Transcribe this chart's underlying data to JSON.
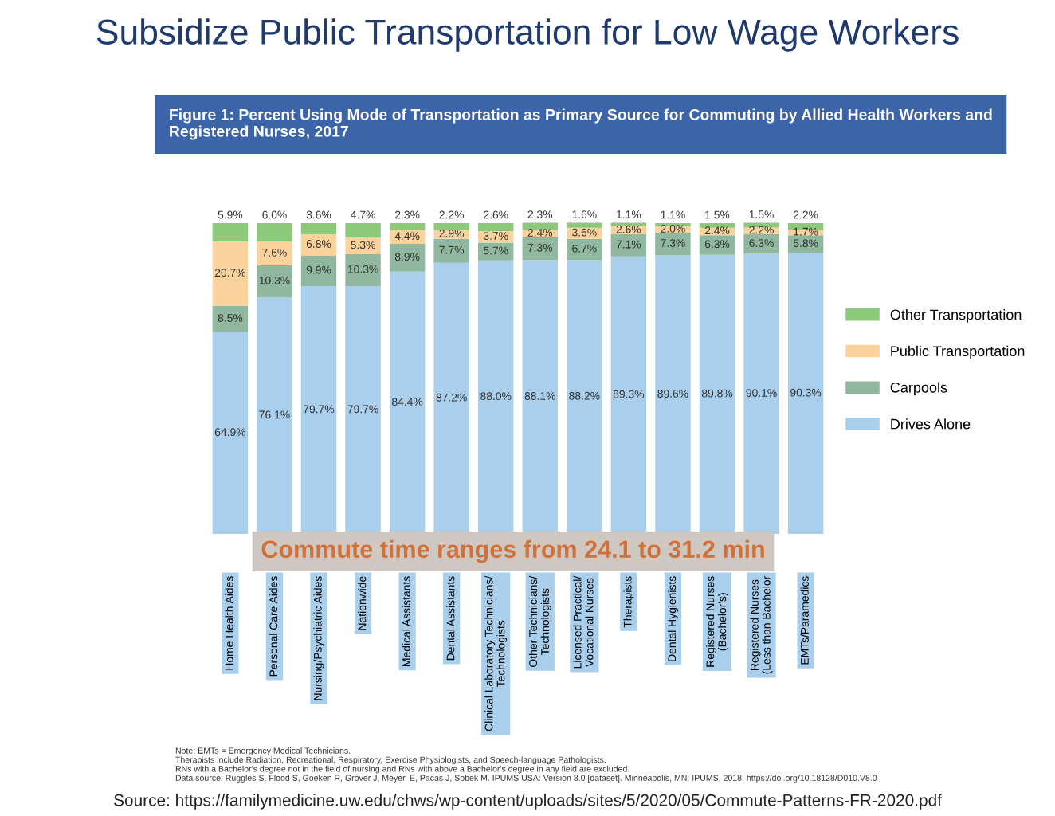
{
  "chart_data": {
    "type": "bar",
    "stacked": true,
    "title": "Subsidize Public Transportation for Low Wage Workers",
    "subtitle": "Figure 1: Percent Using Mode of Transportation as Primary Source for Commuting by Allied Health Workers and Registered Nurses, 2017",
    "categories": [
      "Home Health Aides",
      "Personal Care Aides",
      "Nursing/Psychiatric Aides",
      "Nationwide",
      "Medical Assistants",
      "Dental Assistants",
      "Clinical Laboratory Technicians/\nTechnologists",
      "Other Technicians/\nTechnologists",
      "Licensed Practical/\nVocational Nurses",
      "Therapists",
      "Dental Hygienists",
      "Registered Nurses\n(Bachelor's)",
      "Registered Nurses\n(Less than Bachelor",
      "EMTs/Paramedics"
    ],
    "series": [
      {
        "name": "Drives Alone",
        "color": "#a9cfec",
        "values": [
          64.9,
          76.1,
          79.7,
          79.7,
          84.4,
          87.2,
          88.0,
          88.1,
          88.2,
          89.3,
          89.6,
          89.8,
          90.1,
          90.3
        ],
        "value_labels": [
          "64.9%",
          "76.1%",
          "79.7%",
          "79.7%",
          "84.4%",
          "87.2%",
          "88.0%",
          "88.1%",
          "88.2%",
          "89.3%",
          "89.6%",
          "89.8%",
          "90.1%",
          "90.3%"
        ]
      },
      {
        "name": "Carpools",
        "color": "#8fb89f",
        "values": [
          8.5,
          10.3,
          9.9,
          10.3,
          8.9,
          7.7,
          5.7,
          7.3,
          6.7,
          7.1,
          7.3,
          6.3,
          6.3,
          5.8
        ],
        "value_labels": [
          "8.5%",
          "10.3%",
          "9.9%",
          "10.3%",
          "8.9%",
          "7.7%",
          "5.7%",
          "7.3%",
          "6.7%",
          "7.1%",
          "7.3%",
          "6.3%",
          "6.3%",
          "5.8%"
        ]
      },
      {
        "name": "Public Transportation",
        "color": "#f9d39b",
        "values": [
          20.7,
          7.6,
          6.8,
          5.3,
          4.4,
          2.9,
          3.7,
          2.4,
          3.6,
          2.6,
          2.0,
          2.4,
          2.2,
          1.7
        ],
        "value_labels": [
          "20.7%",
          "7.6%",
          "6.8%",
          "5.3%",
          "4.4%",
          "2.9%",
          "3.7%",
          "2.4%",
          "3.6%",
          "2.6%",
          "2.0%",
          "2.4%",
          "2.2%",
          "1.7%"
        ]
      },
      {
        "name": "Other Transportation",
        "color": "#8cc97a",
        "values": [
          5.9,
          6.0,
          3.6,
          4.7,
          2.3,
          2.2,
          2.6,
          2.3,
          1.6,
          1.1,
          1.1,
          1.5,
          1.5,
          2.2
        ],
        "value_labels": [
          "5.9%",
          "6.0%",
          "3.6%",
          "4.7%",
          "2.3%",
          "2.2%",
          "2.6%",
          "2.3%",
          "1.6%",
          "1.1%",
          "1.1%",
          "1.5%",
          "1.5%",
          "2.2%"
        ]
      }
    ],
    "legend": "right",
    "annotations": [
      "Commute time ranges from 24.1 to 31.2 min",
      "Note: EMTs = Emergency Medical Technicians.\nTherapists include Radiation, Recreational, Respiratory, Exercise Physiologists, and Speech-language Pathologists.\nRNs with a Bachelor's degree not in the field of nursing and RNs with above a Bachelor's degree in any field are excluded.\nData source: Ruggles S, Flood S, Goeken R, Grover J, Meyer, E, Pacas J, Sobek M. IPUMS USA: Version 8.0 [dataset]. Minneapolis, MN: IPUMS, 2018. https://doi.org/10.18128/D010.V8.0",
      "Source: https://familymedicine.uw.edu/chws/wp-content/uploads/sites/5/2020/05/Commute-Patterns-FR-2020.pdf"
    ]
  }
}
